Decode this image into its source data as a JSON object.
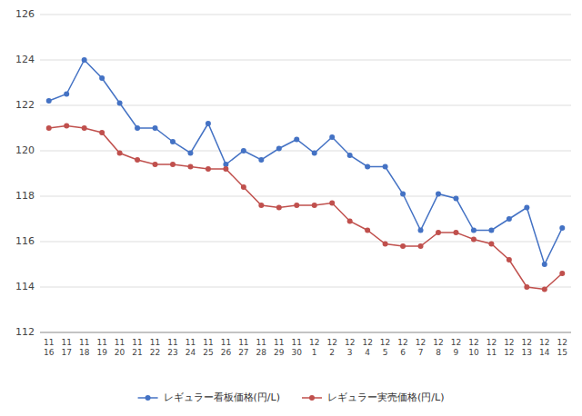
{
  "chart_data": {
    "type": "line",
    "categories": [
      "11\n16",
      "11\n17",
      "11\n18",
      "11\n19",
      "11\n20",
      "11\n21",
      "11\n22",
      "11\n23",
      "11\n24",
      "11\n25",
      "11\n26",
      "11\n27",
      "11\n28",
      "11\n29",
      "11\n30",
      "12\n1",
      "12\n2",
      "12\n3",
      "12\n4",
      "12\n5",
      "12\n6",
      "12\n7",
      "12\n8",
      "12\n9",
      "12\n10",
      "12\n11",
      "12\n12",
      "12\n13",
      "12\n14",
      "12\n15"
    ],
    "series": [
      {
        "name": "レギュラー看板価格(円/L)",
        "color": "#4472C4",
        "marker": "circle",
        "values": [
          122.2,
          122.5,
          124.0,
          123.2,
          122.1,
          121.0,
          121.0,
          120.4,
          119.9,
          121.2,
          119.4,
          120.0,
          119.6,
          120.1,
          120.5,
          119.9,
          120.6,
          119.8,
          119.3,
          119.3,
          118.1,
          116.5,
          118.1,
          117.9,
          116.5,
          116.5,
          117.0,
          117.5,
          115.0,
          116.6
        ]
      },
      {
        "name": "レギュラー実売価格(円/L)",
        "color": "#C0504D",
        "marker": "circle",
        "values": [
          121.0,
          121.1,
          121.0,
          120.8,
          119.9,
          119.6,
          119.4,
          119.4,
          119.3,
          119.2,
          119.2,
          118.4,
          117.6,
          117.5,
          117.6,
          117.6,
          117.7,
          116.9,
          116.5,
          115.9,
          115.8,
          115.8,
          116.4,
          116.4,
          116.1,
          115.9,
          115.2,
          114.0,
          113.9,
          114.6
        ]
      }
    ],
    "ylim": [
      112,
      126
    ],
    "yticks": [
      112,
      114,
      116,
      118,
      120,
      122,
      124,
      126
    ],
    "grid": true,
    "legend": "bottom"
  }
}
